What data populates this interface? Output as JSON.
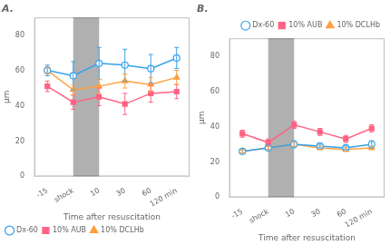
{
  "chart_data": [
    {
      "type": "line",
      "title": "A.",
      "categories": [
        "-15",
        "shock",
        "10",
        "30",
        "60",
        "120 min"
      ],
      "series": [
        {
          "name": "Dx-60",
          "marker": "open_circle",
          "values": [
            60,
            57,
            64,
            63,
            61,
            67
          ],
          "errors": [
            3,
            8,
            9,
            9,
            8,
            6
          ]
        },
        {
          "name": "10% AUB",
          "marker": "square",
          "values": [
            51,
            42,
            45,
            41,
            47,
            48
          ],
          "errors": [
            3,
            4,
            5,
            6,
            5,
            4
          ]
        },
        {
          "name": "10% DCLHb",
          "marker": "triangle",
          "values": [
            60,
            49,
            51,
            54,
            52,
            56
          ],
          "errors": [
            2,
            3,
            4,
            4,
            4,
            4
          ]
        }
      ],
      "ylim": [
        0,
        90
      ],
      "yticks": [
        0,
        20,
        40,
        60,
        80
      ],
      "y_label": "μm",
      "x_label": "Time after resuscitation",
      "shaded_region": {
        "from": "shock",
        "to": "10",
        "color": "#b0b0b0"
      },
      "grid": false,
      "legend": "lower left"
    },
    {
      "type": "line",
      "title": "B.",
      "categories": [
        "-15",
        "shock",
        "10",
        "30",
        "60",
        "120 min"
      ],
      "series": [
        {
          "name": "Dx-60",
          "marker": "open_circle",
          "values": [
            26,
            28,
            30,
            29,
            28,
            30
          ],
          "errors": [
            1,
            1,
            2,
            1,
            1,
            2
          ]
        },
        {
          "name": "10% AUB",
          "marker": "square",
          "values": [
            36,
            31,
            41,
            37,
            33,
            39
          ],
          "errors": [
            2,
            2,
            2,
            2,
            2,
            2
          ]
        },
        {
          "name": "10% DCLHb",
          "marker": "triangle",
          "values": [
            26,
            28,
            30,
            28,
            27,
            28
          ],
          "errors": [
            1,
            1,
            1,
            1,
            1,
            1
          ]
        }
      ],
      "ylim": [
        0,
        90
      ],
      "yticks": [
        0,
        20,
        40,
        60,
        80
      ],
      "y_label": "μm",
      "x_label": "Time after resuscitation",
      "shaded_region": {
        "from": "shock",
        "to": "10",
        "color": "#b0b0b0"
      },
      "grid": false,
      "legend": "upper right"
    }
  ]
}
